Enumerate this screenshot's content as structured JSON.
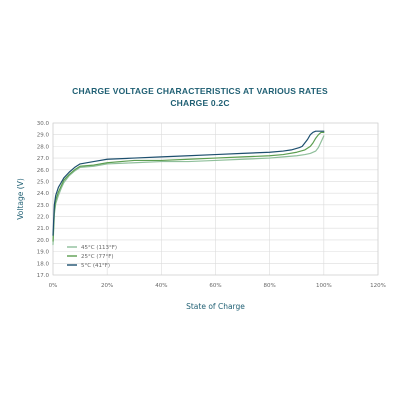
{
  "chart_data": {
    "type": "line",
    "title": "CHARGE VOLTAGE CHARACTERISTICS AT VARIOUS RATES",
    "subtitle": "CHARGE 0.2C",
    "xlabel": "State of Charge",
    "ylabel": "Voltage (V)",
    "xlim": [
      0,
      120
    ],
    "ylim": [
      17,
      30
    ],
    "x_ticks": [
      "0%",
      "20%",
      "40%",
      "60%",
      "80%",
      "100%",
      "120%"
    ],
    "x_tick_values": [
      0,
      20,
      40,
      60,
      80,
      100,
      120
    ],
    "y_ticks": [
      "17.0",
      "18.0",
      "19.0",
      "20.0",
      "21.0",
      "22.0",
      "23.0",
      "24.0",
      "25.0",
      "26.0",
      "27.0",
      "28.0",
      "29.0",
      "30.0"
    ],
    "y_tick_values": [
      17,
      18,
      19,
      20,
      21,
      22,
      23,
      24,
      25,
      26,
      27,
      28,
      29,
      30
    ],
    "grid": true,
    "legend_position": "bottom-left",
    "series": [
      {
        "name": "45°C (113°F)",
        "color": "#8fbf9b",
        "x": [
          0,
          0.5,
          1,
          2,
          3,
          4,
          6,
          8,
          10,
          15,
          20,
          30,
          40,
          50,
          60,
          70,
          80,
          85,
          90,
          93,
          95,
          97,
          98,
          99,
          100
        ],
        "y": [
          19.6,
          22.2,
          23.1,
          23.8,
          24.4,
          24.9,
          25.5,
          25.9,
          26.2,
          26.3,
          26.5,
          26.6,
          26.7,
          26.7,
          26.8,
          26.9,
          27.0,
          27.1,
          27.2,
          27.3,
          27.4,
          27.6,
          27.9,
          28.4,
          28.9
        ]
      },
      {
        "name": "25°C (77°F)",
        "color": "#5c9e50",
        "x": [
          0,
          0.5,
          1,
          2,
          3,
          4,
          6,
          8,
          10,
          15,
          20,
          30,
          40,
          50,
          60,
          70,
          80,
          85,
          90,
          93,
          95,
          96,
          97,
          98,
          99,
          100
        ],
        "y": [
          19.9,
          22.5,
          23.4,
          24.1,
          24.6,
          25.1,
          25.6,
          26.0,
          26.3,
          26.4,
          26.6,
          26.8,
          26.8,
          26.9,
          27.0,
          27.1,
          27.2,
          27.3,
          27.5,
          27.7,
          28.0,
          28.3,
          28.7,
          29.0,
          29.2,
          29.2
        ]
      },
      {
        "name": "5°C (41°F)",
        "color": "#1d4f6e",
        "x": [
          0,
          0.5,
          1,
          2,
          3,
          4,
          6,
          8,
          10,
          15,
          20,
          30,
          40,
          50,
          60,
          70,
          80,
          85,
          88,
          91,
          92,
          93,
          94,
          95,
          96,
          97,
          98,
          100
        ],
        "y": [
          20.4,
          23.0,
          23.8,
          24.5,
          24.9,
          25.3,
          25.8,
          26.2,
          26.5,
          26.7,
          26.9,
          27.0,
          27.1,
          27.2,
          27.3,
          27.4,
          27.5,
          27.6,
          27.7,
          27.9,
          28.0,
          28.3,
          28.6,
          29.0,
          29.2,
          29.3,
          29.3,
          29.3
        ]
      }
    ]
  }
}
